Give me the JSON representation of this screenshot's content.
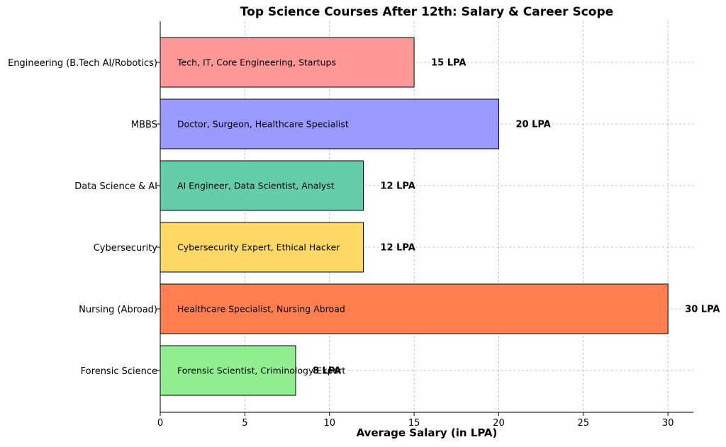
{
  "chart_data": {
    "type": "bar",
    "orientation": "horizontal",
    "title": "Top Science Courses After 12th: Salary & Career Scope",
    "xlabel": "Average Salary (in LPA)",
    "ylabel": "",
    "xlim": [
      0,
      31.5
    ],
    "xticks": [
      0,
      5,
      10,
      15,
      20,
      25,
      30
    ],
    "grid": true,
    "categories": [
      "Engineering (B.Tech AI/Robotics)",
      "MBBS",
      "Data Science & AI",
      "Cybersecurity",
      "Nursing (Abroad)",
      "Forensic Science"
    ],
    "values": [
      15,
      20,
      12,
      12,
      30,
      8
    ],
    "value_labels": [
      "15 LPA",
      "20 LPA",
      "12 LPA",
      "12 LPA",
      "30 LPA",
      "8 LPA"
    ],
    "annotations": [
      "Tech, IT, Core Engineering, Startups",
      "Doctor, Surgeon, Healthcare Specialist",
      "AI Engineer, Data Scientist, Analyst",
      "Cybersecurity Expert, Ethical Hacker",
      "Healthcare Specialist, Nursing Abroad",
      "Forensic Scientist, Criminology Expert"
    ],
    "colors": [
      "#ff9999",
      "#9999ff",
      "#66cdaa",
      "#ffd966",
      "#ff7f50",
      "#90ee90"
    ]
  }
}
